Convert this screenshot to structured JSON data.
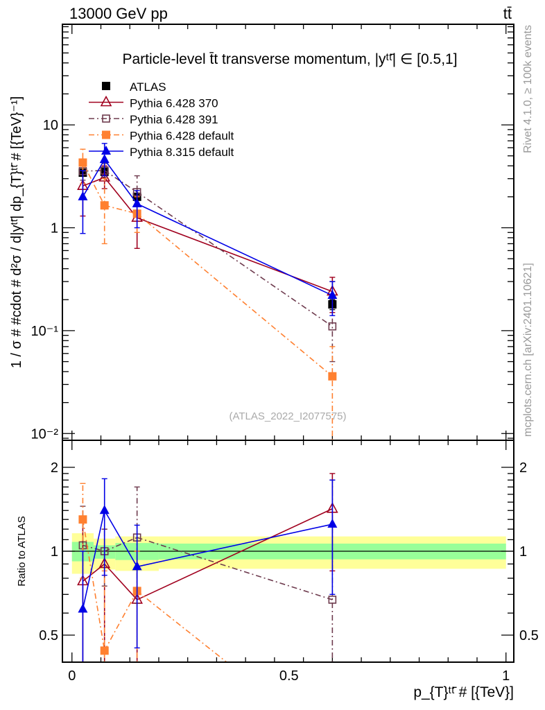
{
  "chart_data": [
    {
      "type": "line",
      "panel": "main",
      "title": "Particle-level t̄t transverse momentum, |yᵗᵗ̄| ∈ [0.5,1]",
      "top_left_label": "13000 GeV pp",
      "top_right_label": "tt̄",
      "ylabel": "1 / σ # #cdot # d²σ / d|yᵗᵗ̄| dp_{T}ᵗᵗ̄ # [{TeV}⁻¹]",
      "yscale": "log",
      "ylim": [
        0.0086,
        95
      ],
      "xlim": [
        -0.022,
        1.018
      ],
      "yticks": [
        {
          "v": 10,
          "label": "10"
        },
        {
          "v": 1,
          "label": "1"
        },
        {
          "v": 0.1,
          "label": "10⁻¹"
        },
        {
          "v": 0.01,
          "label": "10⁻²"
        }
      ],
      "legend_position": "top-left",
      "annotation": "(ATLAS_2022_I2077575)",
      "side_label_top": "Rivet 4.1.0, ≥ 100k events",
      "side_label_bottom": "mcplots.cern.ch [arXiv:2401.10621]",
      "x": [
        0.025,
        0.075,
        0.15,
        0.6
      ],
      "series": [
        {
          "name": "ATLAS",
          "color": "#000000",
          "marker": "filled-square",
          "line": "none",
          "values": [
            3.43,
            3.5,
            2.0,
            0.18
          ],
          "err": [
            [
              3.2,
              3.7
            ],
            [
              3.3,
              3.7
            ],
            [
              1.9,
              2.1
            ],
            [
              0.16,
              0.2
            ]
          ]
        },
        {
          "name": "Pythia 6.428 370",
          "color": "#a0001e",
          "marker": "open-triangle",
          "line": "solid",
          "values": [
            2.55,
            3.08,
            1.25,
            0.24
          ],
          "err": [
            [
              1.3,
              4.3
            ],
            [
              2.4,
              4.0
            ],
            [
              0.63,
              2.0
            ],
            [
              0.15,
              0.33
            ]
          ]
        },
        {
          "name": "Pythia 6.428 391",
          "color": "#6e3b4e",
          "marker": "open-square",
          "line": "dashdot",
          "values": [
            3.55,
            3.6,
            2.22,
            0.11
          ],
          "err": [
            [
              2.9,
              4.4
            ],
            [
              3.1,
              4.2
            ],
            [
              1.3,
              3.2
            ],
            [
              0.05,
              0.3
            ]
          ]
        },
        {
          "name": "Pythia 6.428 default",
          "color": "#ff8030",
          "marker": "filled-square",
          "line": "dashdot",
          "values": [
            4.3,
            1.65,
            1.37,
            0.036
          ],
          "err": [
            [
              2.7,
              5.8
            ],
            [
              0.7,
              3.0
            ],
            [
              0.9,
              2.0
            ],
            [
              0.001,
              0.07
            ]
          ]
        },
        {
          "name": "Pythia 8.315 default",
          "color": "#0000e6",
          "marker": "filled-triangle",
          "line": "solid",
          "values": [
            2.0,
            4.6,
            1.71,
            0.22
          ],
          "err": [
            [
              0.88,
              3.6
            ],
            [
              3.2,
              6.6
            ],
            [
              1.0,
              2.3
            ],
            [
              0.14,
              0.3
            ]
          ]
        }
      ]
    },
    {
      "type": "line",
      "panel": "ratio",
      "ylabel": "Ratio to ATLAS",
      "xlabel": "p_{T}ᵗᵗ̄ # [{TeV}]",
      "yscale": "log",
      "ylim": [
        0.4,
        2.5
      ],
      "xlim": [
        -0.022,
        1.018
      ],
      "yticks": [
        {
          "v": 2,
          "label": "2"
        },
        {
          "v": 1,
          "label": "1"
        },
        {
          "v": 0.5,
          "label": "0.5"
        }
      ],
      "xticks": [
        {
          "v": 0,
          "label": "0"
        },
        {
          "v": 0.5,
          "label": "0.5"
        },
        {
          "v": 1,
          "label": "1"
        }
      ],
      "bands": {
        "bins": [
          [
            0,
            0.05
          ],
          [
            0.05,
            0.1
          ],
          [
            0.1,
            0.2
          ],
          [
            0.2,
            1.0
          ]
        ],
        "green": [
          [
            0.92,
            1.08
          ],
          [
            0.94,
            1.05
          ],
          [
            0.93,
            1.07
          ],
          [
            0.935,
            1.065
          ]
        ],
        "yellow": [
          [
            0.83,
            1.16
          ],
          [
            0.86,
            1.11
          ],
          [
            0.85,
            1.13
          ],
          [
            0.865,
            1.13
          ]
        ],
        "green_color": "#99ff99",
        "yellow_color": "#ffff99"
      },
      "x": [
        0.025,
        0.075,
        0.15,
        0.6
      ],
      "series": [
        {
          "name": "Pythia 6.428 370",
          "color": "#a0001e",
          "marker": "open-triangle",
          "line": "solid",
          "values": [
            0.78,
            0.9,
            0.67,
            1.42
          ],
          "err": [
            [
              0.4,
              1.3
            ],
            [
              0.35,
              1.2
            ],
            [
              0.32,
              1.0
            ],
            [
              0.85,
              1.9
            ]
          ]
        },
        {
          "name": "Pythia 6.428 391",
          "color": "#6e3b4e",
          "marker": "open-square",
          "line": "dashdot",
          "values": [
            1.05,
            1.0,
            1.12,
            0.67
          ],
          "err": [
            [
              0.8,
              1.45
            ],
            [
              0.75,
              1.2
            ],
            [
              0.65,
              1.7
            ],
            [
              0.3,
              1.8
            ]
          ]
        },
        {
          "name": "Pythia 6.428 default",
          "color": "#ff8030",
          "marker": "filled-square",
          "line": "dashdot",
          "values": [
            1.3,
            0.44,
            0.72,
            0.2
          ],
          "err": [
            [
              0.8,
              1.75
            ],
            [
              0.2,
              0.85
            ],
            [
              0.1,
              1.0
            ],
            [
              0.01,
              0.4
            ]
          ]
        },
        {
          "name": "Pythia 8.315 default",
          "color": "#0000e6",
          "marker": "filled-triangle",
          "line": "solid",
          "values": [
            0.62,
            1.4,
            0.88,
            1.25
          ],
          "err": [
            [
              0.1,
              1.0
            ],
            [
              0.82,
              1.82
            ],
            [
              0.45,
              1.24
            ],
            [
              0.7,
              1.8
            ]
          ]
        }
      ]
    }
  ]
}
